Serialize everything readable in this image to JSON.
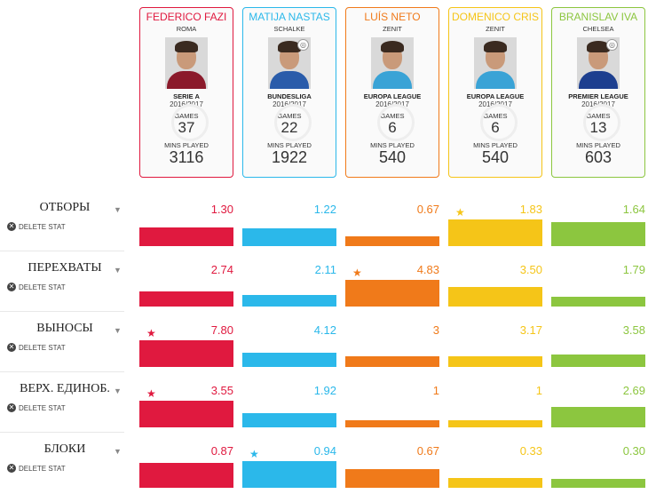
{
  "players": [
    {
      "name": "FEDERICO FAZI",
      "club": "ROMA",
      "league": "SERIE A",
      "season": "2016/2017",
      "games_label": "GAMES",
      "games": "37",
      "mins_label": "MINS PLAYED",
      "mins": "3116",
      "color": "#e0193f",
      "shirt": "#8b1a2b",
      "badge": false
    },
    {
      "name": "MATIJA NASTAS",
      "club": "SCHALKE",
      "league": "BUNDESLIGA",
      "season": "2016/2017",
      "games_label": "GAMES",
      "games": "22",
      "mins_label": "MINS PLAYED",
      "mins": "1922",
      "color": "#2bb8ea",
      "shirt": "#2a5caa",
      "badge": true
    },
    {
      "name": "LUÍS NETO",
      "club": "ZENIT",
      "league": "EUROPA LEAGUE",
      "season": "2016/2017",
      "games_label": "GAMES",
      "games": "6",
      "mins_label": "MINS PLAYED",
      "mins": "540",
      "color": "#f07a1a",
      "shirt": "#3aa3d6",
      "badge": false
    },
    {
      "name": "DOMENICO CRIS",
      "club": "ZENIT",
      "league": "EUROPA LEAGUE",
      "season": "2016/2017",
      "games_label": "GAMES",
      "games": "6",
      "mins_label": "MINS PLAYED",
      "mins": "540",
      "color": "#f5c518",
      "shirt": "#3aa3d6",
      "badge": false
    },
    {
      "name": "BRANISLAV IVA",
      "club": "CHELSEA",
      "league": "PREMIER LEAGUE",
      "season": "2016/2017",
      "games_label": "GAMES",
      "games": "13",
      "mins_label": "MINS PLAYED",
      "mins": "603",
      "color": "#8cc63f",
      "shirt": "#1d3f8f",
      "badge": true
    }
  ],
  "delete_label": "DELETE STAT",
  "stats": [
    {
      "label": "ОТБОРЫ",
      "values": [
        "1.30",
        "1.22",
        "0.67",
        "1.83",
        "1.64"
      ],
      "nums": [
        1.3,
        1.22,
        0.67,
        1.83,
        1.64
      ],
      "max": 1.83,
      "best": 3
    },
    {
      "label": "ПЕРЕХВАТЫ",
      "values": [
        "2.74",
        "2.11",
        "4.83",
        "3.50",
        "1.79"
      ],
      "nums": [
        2.74,
        2.11,
        4.83,
        3.5,
        1.79
      ],
      "max": 4.83,
      "best": 2
    },
    {
      "label": "ВЫНОСЫ",
      "values": [
        "7.80",
        "4.12",
        "3",
        "3.17",
        "3.58"
      ],
      "nums": [
        7.8,
        4.12,
        3,
        3.17,
        3.58
      ],
      "max": 7.8,
      "best": 0
    },
    {
      "label": "ВЕРХ. ЕДИНОБ.",
      "values": [
        "3.55",
        "1.92",
        "1",
        "1",
        "2.69"
      ],
      "nums": [
        3.55,
        1.92,
        1,
        1,
        2.69
      ],
      "max": 3.55,
      "best": 0
    },
    {
      "label": "БЛОКИ",
      "values": [
        "0.87",
        "0.94",
        "0.67",
        "0.33",
        "0.30"
      ],
      "nums": [
        0.87,
        0.94,
        0.67,
        0.33,
        0.3
      ],
      "max": 0.94,
      "best": 1
    }
  ]
}
